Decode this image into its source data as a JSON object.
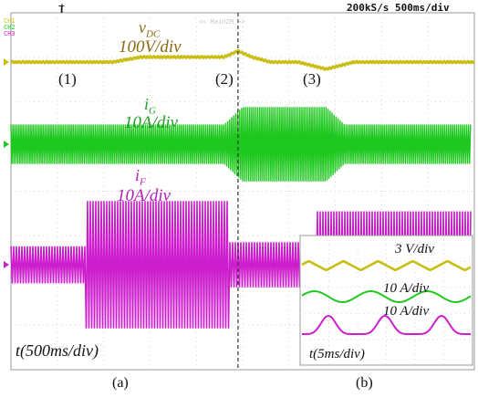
{
  "header": {
    "timebase": "200kS/s 500ms/div",
    "mode": "<< MainZM >>",
    "trigger_glyph": "T"
  },
  "channel_labels": [
    "CH1",
    "CH2",
    "CH3"
  ],
  "colors": {
    "vdc": "#c8be14",
    "ig": "#1ec81e",
    "if": "#cd1ecd",
    "grid": "#d6d6d6",
    "cursor": "#333333"
  },
  "annotations": {
    "vdc_name": "v",
    "vdc_sub": "DC",
    "vdc_scale": "100V/div",
    "ig_name": "i",
    "ig_sub": "G",
    "ig_scale": "10A/div",
    "if_name": "i",
    "if_sub": "F",
    "if_scale": "10A/div",
    "time_main": "t(500ms/div)"
  },
  "markers": [
    "(1)",
    "(2)",
    "(3)"
  ],
  "inset": {
    "vdc_scale": "3 V/div",
    "ig_scale": "10 A/div",
    "if_scale": "10 A/div",
    "time": "t(5ms/div)"
  },
  "captions": [
    "(a)",
    "(b)"
  ],
  "chart_data": {
    "type": "line",
    "x_unit": "div (500 ms/div)",
    "xlim": [
      0,
      10
    ],
    "series": [
      {
        "name": "vDC",
        "scale": "100V/div",
        "x": [
          0,
          2.2,
          2.8,
          4.6,
          4.9,
          5.2,
          5.6,
          6.2,
          6.8,
          7.4,
          10
        ],
        "y": [
          0,
          0,
          0.25,
          0.25,
          0.55,
          0.25,
          0.0,
          0.0,
          -0.35,
          0.0,
          0.0
        ]
      },
      {
        "name": "iG",
        "scale": "10A/div",
        "x": [
          0,
          4.6,
          5.0,
          6.8,
          7.2,
          10
        ],
        "amplitude": [
          0.45,
          0.45,
          0.85,
          0.85,
          0.45,
          0.45
        ]
      },
      {
        "name": "iF",
        "scale": "10A/div",
        "x": [
          0,
          1.6,
          1.61,
          4.7,
          4.71,
          6.6,
          6.61,
          10
        ],
        "amplitude": [
          0.45,
          0.45,
          1.55,
          1.55,
          0.55,
          0.55,
          1.3,
          1.3
        ]
      }
    ],
    "events": [
      {
        "label": "(1)",
        "x": 1.9
      },
      {
        "label": "(2)",
        "x": 4.9
      },
      {
        "label": "(3)",
        "x": 6.4
      }
    ]
  }
}
